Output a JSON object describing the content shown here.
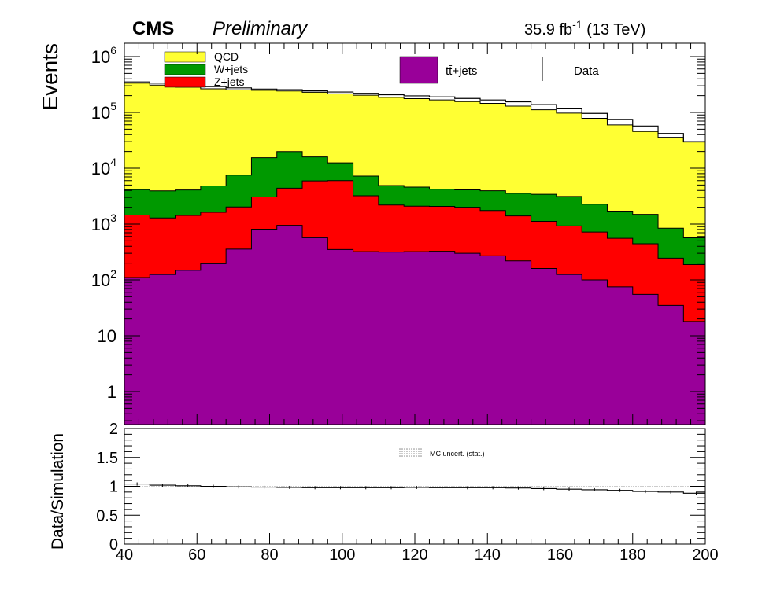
{
  "header": {
    "experiment": "CMS",
    "status": "Preliminary",
    "lumi": "35.9 fb",
    "lumi_exp": "-1",
    "energy": " (13 TeV)"
  },
  "legend": {
    "qcd": "QCD",
    "wjets": "W+jets",
    "zjets": "Z+jets",
    "ttbar": "tt̄+jets",
    "data": "Data"
  },
  "ratio_legend": {
    "unc": "MC uncert. (stat.)"
  },
  "colors": {
    "qcd": "#ffff33",
    "wjets": "#009900",
    "zjets": "#ff0000",
    "ttbar": "#990099",
    "hatch": "#999999"
  },
  "chart_data": [
    {
      "type": "area",
      "subtype": "stacked-histogram",
      "ylabel": "Events",
      "xlim": [
        40,
        200
      ],
      "ylim": [
        0.3,
        1400000
      ],
      "log_y": true,
      "y_ticks": [
        "1",
        "10",
        "10^2",
        "10^3",
        "10^4",
        "10^5",
        "10^6"
      ],
      "bin_edges": [
        40,
        47,
        54,
        61,
        68,
        75,
        82,
        89,
        96,
        103,
        110,
        117,
        124,
        131,
        138,
        145,
        152,
        159,
        166,
        173,
        180,
        187,
        194,
        201
      ],
      "series": [
        {
          "name": "tt̄+jets",
          "values": [
            110,
            125,
            148,
            195,
            355,
            810,
            950,
            570,
            350,
            320,
            315,
            320,
            325,
            300,
            270,
            220,
            160,
            125,
            100,
            75,
            55,
            35,
            18
          ]
        },
        {
          "name": "Z+jets",
          "values": [
            1340,
            1160,
            1280,
            1430,
            1670,
            2250,
            3450,
            5350,
            5650,
            2900,
            1880,
            1770,
            1750,
            1700,
            1480,
            1180,
            960,
            800,
            620,
            480,
            390,
            210,
            170
          ]
        },
        {
          "name": "W+jets",
          "values": [
            2700,
            2650,
            2650,
            3200,
            5500,
            12400,
            15500,
            10000,
            6500,
            4000,
            2700,
            2500,
            2150,
            2100,
            2200,
            2150,
            2300,
            2200,
            1550,
            1150,
            1050,
            600,
            380
          ]
        },
        {
          "name": "QCD",
          "values": [
            330000,
            305000,
            279000,
            260000,
            247000,
            234000,
            222000,
            214000,
            203000,
            196000,
            181000,
            172000,
            163000,
            152000,
            141000,
            126000,
            108000,
            94000,
            76000,
            58000,
            44000,
            35000,
            29000
          ]
        }
      ],
      "data_totals": [
        352000,
        335000,
        310000,
        290000,
        275000,
        262000,
        255000,
        243000,
        232000,
        220000,
        207000,
        198000,
        190000,
        178000,
        167000,
        155000,
        138000,
        119000,
        96000,
        75000,
        57000,
        42000,
        30000
      ]
    },
    {
      "type": "line",
      "subtype": "ratio",
      "ylabel": "Data/Simulation",
      "xlim": [
        40,
        200
      ],
      "ylim": [
        0,
        2
      ],
      "x_ticks": [
        40,
        60,
        80,
        100,
        120,
        140,
        160,
        180,
        200
      ],
      "y_ticks": [
        "0",
        "0.5",
        "1",
        "1.5",
        "2"
      ],
      "values": [
        1.04,
        1.02,
        1.01,
        1.0,
        0.99,
        0.985,
        0.98,
        0.975,
        0.975,
        0.975,
        0.975,
        0.98,
        0.975,
        0.975,
        0.975,
        0.97,
        0.96,
        0.95,
        0.94,
        0.93,
        0.91,
        0.9,
        0.88
      ]
    }
  ]
}
